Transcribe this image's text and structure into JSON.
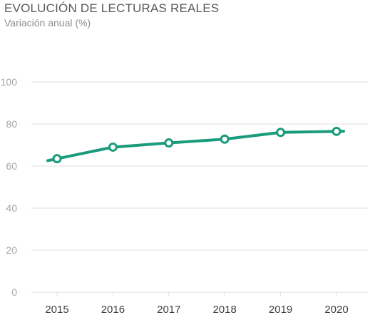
{
  "header": {
    "title": "EVOLUCIÓN DE LECTURAS REALES",
    "subtitle": "Variación anual (%)"
  },
  "colors": {
    "line": "#1a9b7b",
    "grid": "#dcdfe1",
    "marker_fill": "#ffffff"
  },
  "chart_data": {
    "type": "line",
    "title": "EVOLUCIÓN DE LECTURAS REALES",
    "subtitle": "Variación anual (%)",
    "xlabel": "",
    "ylabel": "",
    "categories": [
      "2015",
      "2016",
      "2017",
      "2018",
      "2019",
      "2020"
    ],
    "series": [
      {
        "values": [
          63.5,
          69,
          71,
          72.8,
          76,
          76.5
        ]
      }
    ],
    "ylim": [
      0,
      100
    ],
    "yticks": [
      0,
      20,
      40,
      60,
      80,
      100
    ],
    "grid": "horizontal",
    "legend": "none"
  }
}
